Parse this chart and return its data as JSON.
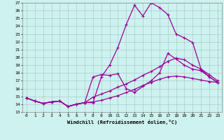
{
  "title": "",
  "xlabel": "Windchill (Refroidissement éolien,°C)",
  "background_color": "#cef2ef",
  "grid_color": "#aacccc",
  "line_color": "#990099",
  "xlim": [
    -0.5,
    23.5
  ],
  "ylim": [
    13,
    27
  ],
  "xticks": [
    0,
    1,
    2,
    3,
    4,
    5,
    6,
    7,
    8,
    9,
    10,
    11,
    12,
    13,
    14,
    15,
    16,
    17,
    18,
    19,
    20,
    21,
    22,
    23
  ],
  "yticks": [
    13,
    14,
    15,
    16,
    17,
    18,
    19,
    20,
    21,
    22,
    23,
    24,
    25,
    26,
    27
  ],
  "line1_x": [
    0,
    1,
    2,
    3,
    4,
    5,
    6,
    7,
    8,
    9,
    10,
    11,
    12,
    13,
    14,
    15,
    16,
    17,
    18,
    19,
    20,
    21,
    22,
    23
  ],
  "line1_y": [
    14.8,
    14.4,
    14.1,
    14.3,
    14.4,
    13.7,
    14.0,
    14.2,
    14.2,
    17.5,
    19.0,
    21.3,
    24.2,
    26.7,
    25.3,
    27.0,
    26.4,
    25.5,
    23.0,
    22.5,
    21.9,
    18.5,
    17.5,
    16.8
  ],
  "line2_x": [
    0,
    1,
    2,
    3,
    4,
    5,
    6,
    7,
    8,
    9,
    10,
    11,
    12,
    13,
    14,
    15,
    16,
    17,
    18,
    19,
    20,
    21,
    22,
    23
  ],
  "line2_y": [
    14.8,
    14.4,
    14.1,
    14.3,
    14.4,
    13.7,
    14.0,
    14.2,
    17.5,
    17.8,
    17.7,
    17.9,
    16.0,
    15.5,
    16.3,
    17.0,
    18.0,
    20.5,
    19.8,
    19.0,
    18.5,
    18.3,
    17.5,
    16.8
  ],
  "line3_x": [
    0,
    1,
    2,
    3,
    4,
    5,
    6,
    7,
    8,
    9,
    10,
    11,
    12,
    13,
    14,
    15,
    16,
    17,
    18,
    19,
    20,
    21,
    22,
    23
  ],
  "line3_y": [
    14.8,
    14.4,
    14.1,
    14.3,
    14.4,
    13.7,
    14.0,
    14.2,
    14.9,
    15.3,
    15.7,
    16.2,
    16.6,
    17.1,
    17.7,
    18.2,
    18.8,
    19.5,
    19.9,
    19.7,
    19.0,
    18.5,
    17.8,
    17.0
  ],
  "line4_x": [
    0,
    1,
    2,
    3,
    4,
    5,
    6,
    7,
    8,
    9,
    10,
    11,
    12,
    13,
    14,
    15,
    16,
    17,
    18,
    19,
    20,
    21,
    22,
    23
  ],
  "line4_y": [
    14.8,
    14.4,
    14.1,
    14.3,
    14.4,
    13.7,
    14.0,
    14.2,
    14.3,
    14.5,
    14.8,
    15.1,
    15.5,
    15.9,
    16.4,
    16.8,
    17.2,
    17.5,
    17.6,
    17.5,
    17.3,
    17.1,
    16.9,
    16.8
  ]
}
